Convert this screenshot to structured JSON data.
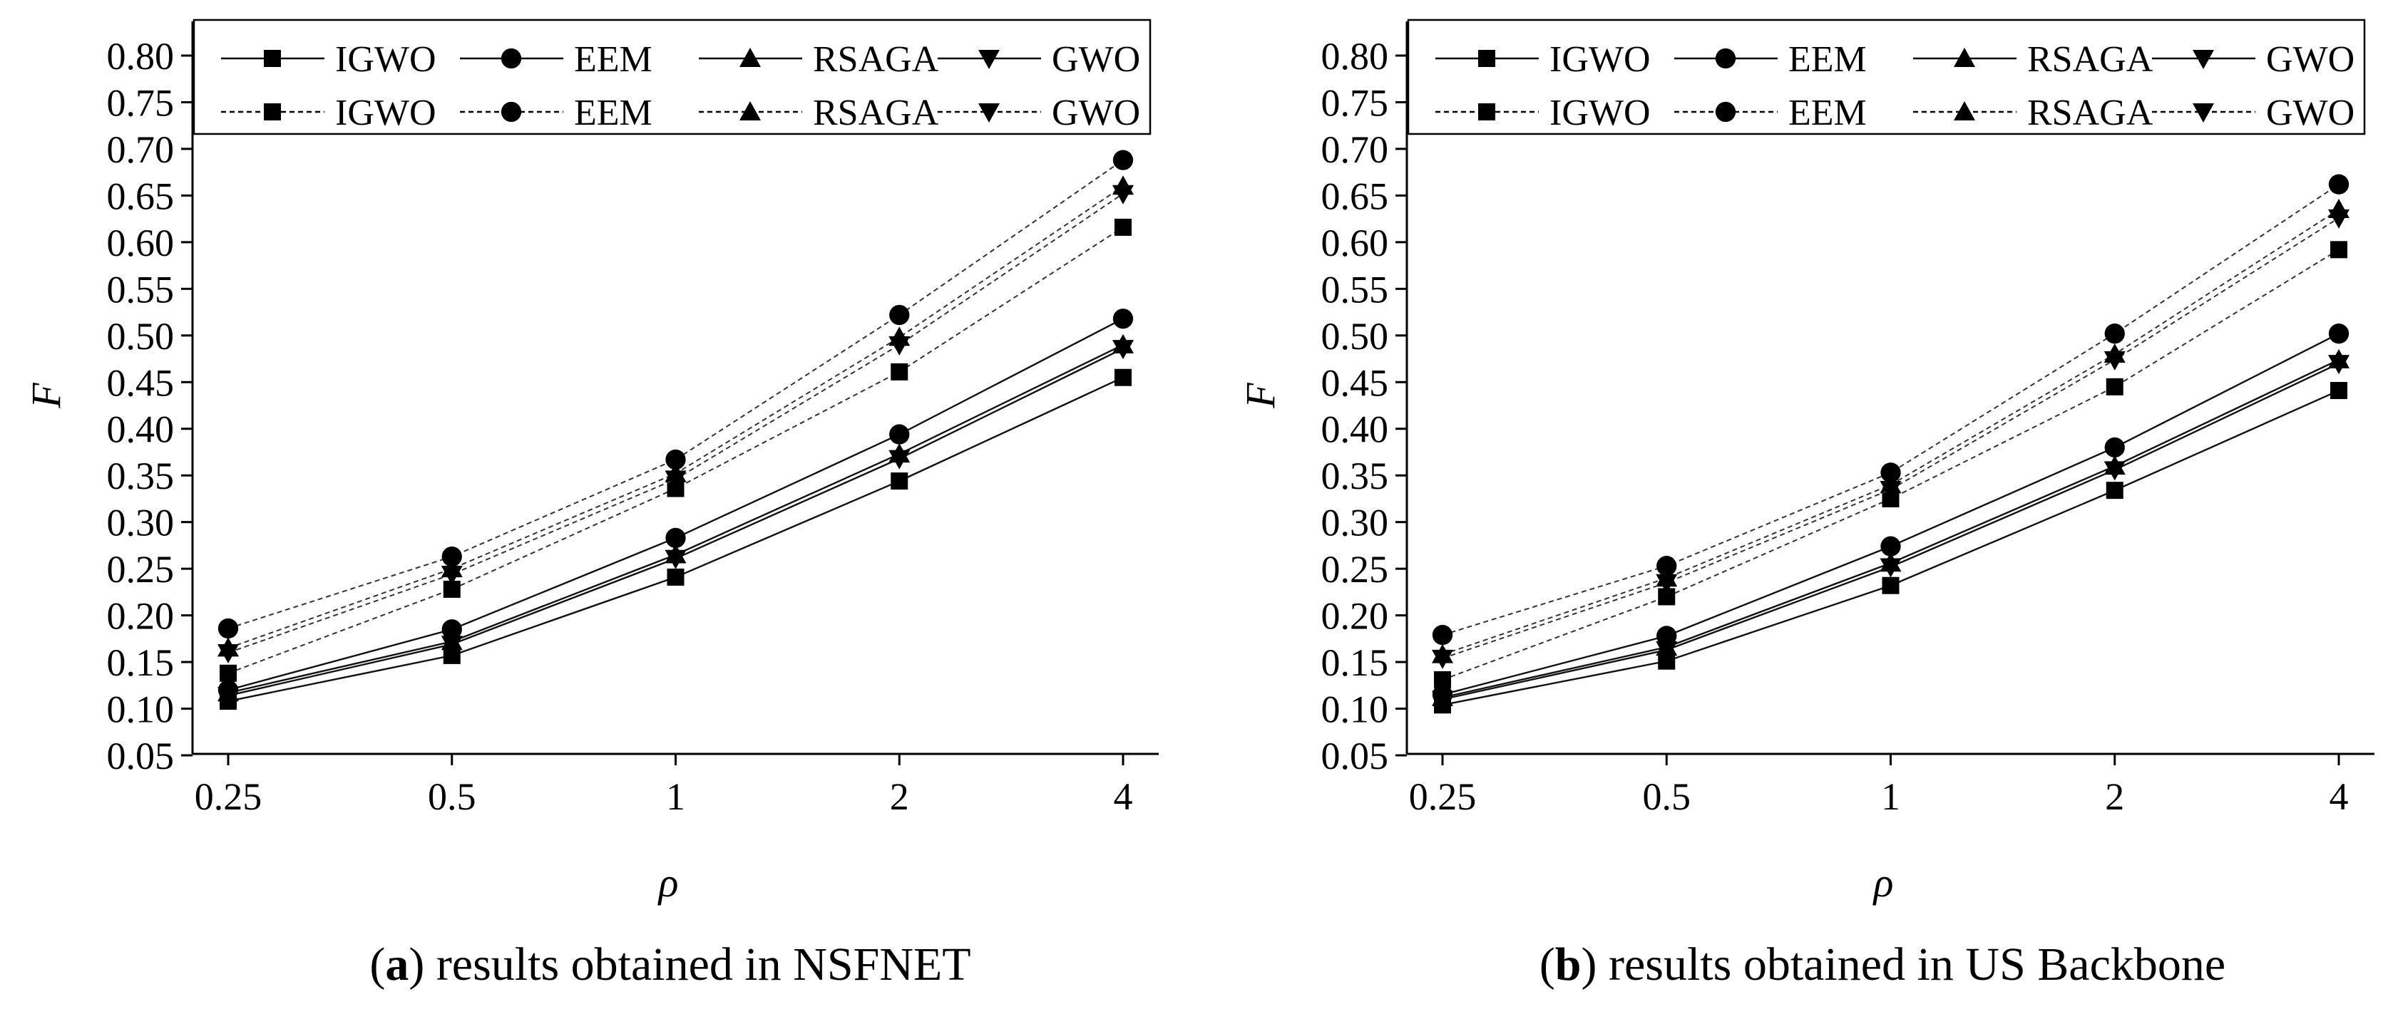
{
  "chart_data": [
    {
      "type": "line",
      "panel_letter": "a",
      "caption": "results obtained in NSFNET",
      "xlabel": "ρ",
      "ylabel": "F",
      "categories": [
        "0.25",
        "0.5",
        "1",
        "2",
        "4"
      ],
      "ylim": [
        0.05,
        0.8
      ],
      "yticks": [
        "0.05",
        "0.10",
        "0.15",
        "0.20",
        "0.25",
        "0.30",
        "0.35",
        "0.40",
        "0.45",
        "0.50",
        "0.55",
        "0.60",
        "0.65",
        "0.70",
        "0.75",
        "0.80"
      ],
      "legend": "top-left",
      "series": [
        {
          "name": "IGWO",
          "style": "solid",
          "marker": "square",
          "values": [
            0.108,
            0.157,
            0.241,
            0.344,
            0.455
          ]
        },
        {
          "name": "EEM",
          "style": "solid",
          "marker": "circle",
          "values": [
            0.12,
            0.185,
            0.283,
            0.394,
            0.518
          ]
        },
        {
          "name": "RSAGA",
          "style": "solid",
          "marker": "triangle-up",
          "values": [
            0.117,
            0.172,
            0.265,
            0.373,
            0.49
          ]
        },
        {
          "name": "GWO",
          "style": "solid",
          "marker": "triangle-down",
          "values": [
            0.114,
            0.169,
            0.261,
            0.368,
            0.486
          ]
        },
        {
          "name": "IGWO",
          "style": "dashed",
          "marker": "square",
          "values": [
            0.138,
            0.228,
            0.336,
            0.461,
            0.616
          ]
        },
        {
          "name": "EEM",
          "style": "dashed",
          "marker": "circle",
          "values": [
            0.186,
            0.263,
            0.367,
            0.522,
            0.688
          ]
        },
        {
          "name": "RSAGA",
          "style": "dashed",
          "marker": "triangle-up",
          "values": [
            0.165,
            0.25,
            0.352,
            0.498,
            0.66
          ]
        },
        {
          "name": "GWO",
          "style": "dashed",
          "marker": "triangle-down",
          "values": [
            0.16,
            0.244,
            0.346,
            0.49,
            0.652
          ]
        }
      ]
    },
    {
      "type": "line",
      "panel_letter": "b",
      "caption": "results obtained in US Backbone",
      "xlabel": "ρ",
      "ylabel": "F",
      "categories": [
        "0.25",
        "0.5",
        "1",
        "2",
        "4"
      ],
      "ylim": [
        0.05,
        0.8
      ],
      "yticks": [
        "0.05",
        "0.10",
        "0.15",
        "0.20",
        "0.25",
        "0.30",
        "0.35",
        "0.40",
        "0.45",
        "0.50",
        "0.55",
        "0.60",
        "0.65",
        "0.70",
        "0.75",
        "0.80"
      ],
      "legend": "top-left",
      "series": [
        {
          "name": "IGWO",
          "style": "solid",
          "marker": "square",
          "values": [
            0.104,
            0.151,
            0.232,
            0.334,
            0.441
          ]
        },
        {
          "name": "EEM",
          "style": "solid",
          "marker": "circle",
          "values": [
            0.115,
            0.178,
            0.274,
            0.38,
            0.502
          ]
        },
        {
          "name": "RSAGA",
          "style": "solid",
          "marker": "triangle-up",
          "values": [
            0.112,
            0.166,
            0.256,
            0.36,
            0.474
          ]
        },
        {
          "name": "GWO",
          "style": "solid",
          "marker": "triangle-down",
          "values": [
            0.11,
            0.163,
            0.252,
            0.356,
            0.47
          ]
        },
        {
          "name": "IGWO",
          "style": "dashed",
          "marker": "square",
          "values": [
            0.131,
            0.22,
            0.325,
            0.445,
            0.592
          ]
        },
        {
          "name": "EEM",
          "style": "dashed",
          "marker": "circle",
          "values": [
            0.179,
            0.253,
            0.353,
            0.502,
            0.662
          ]
        },
        {
          "name": "RSAGA",
          "style": "dashed",
          "marker": "triangle-up",
          "values": [
            0.158,
            0.24,
            0.34,
            0.48,
            0.635
          ]
        },
        {
          "name": "GWO",
          "style": "dashed",
          "marker": "triangle-down",
          "values": [
            0.154,
            0.235,
            0.335,
            0.474,
            0.626
          ]
        }
      ]
    }
  ]
}
